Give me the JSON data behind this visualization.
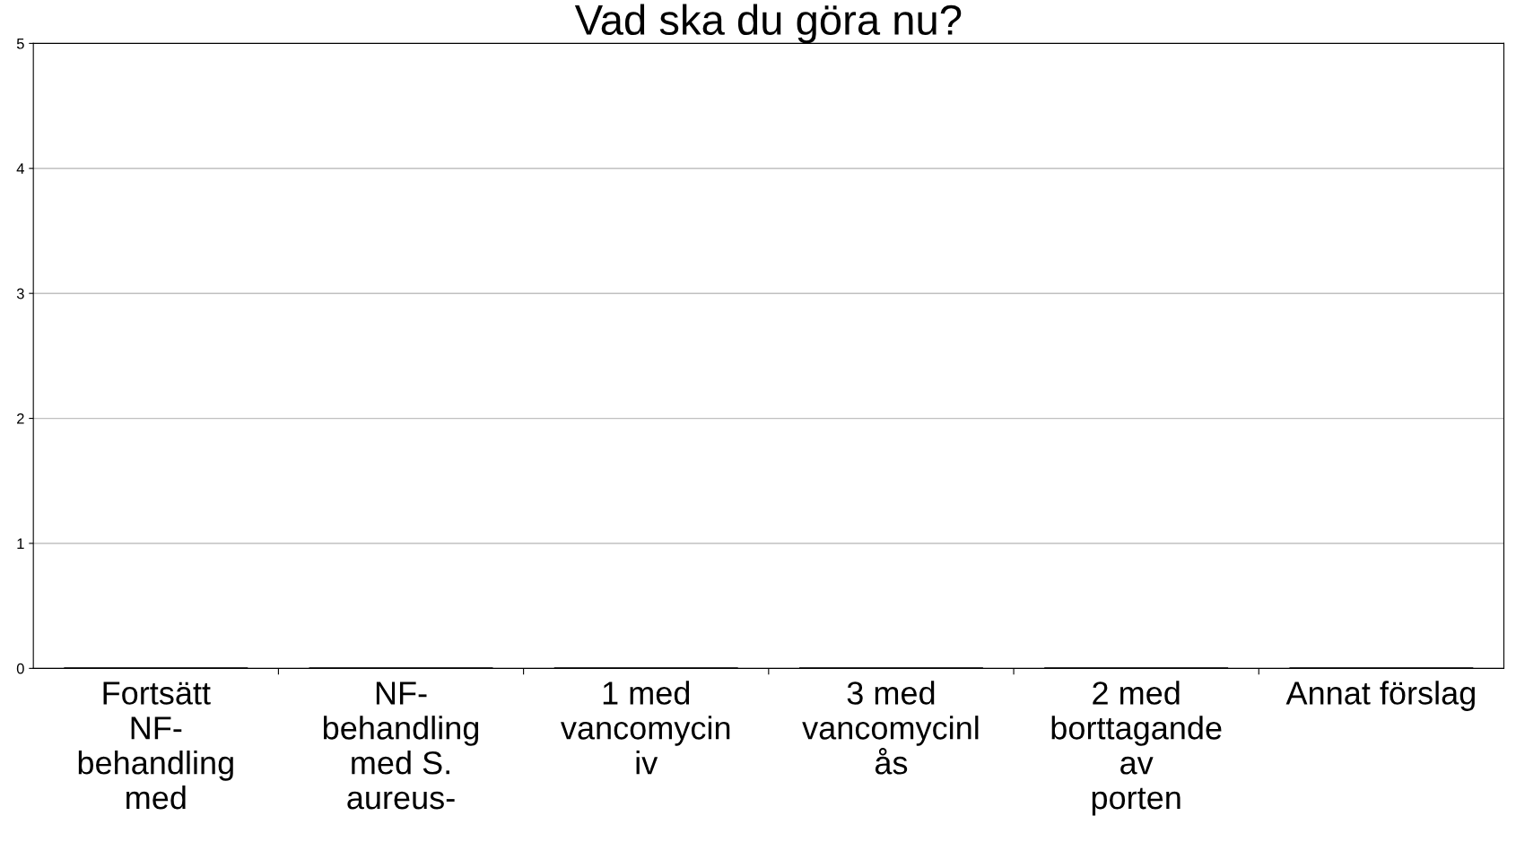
{
  "chart_data": {
    "type": "bar",
    "title": "Vad ska du göra nu?",
    "categories": [
      "Fortsätt\nNF-\nbehandling\nmed",
      "NF-\nbehandling\nmed S.\naureus-",
      "1 med\nvancomycin\niv",
      "3 med\nvancomycinl\nås",
      "2 med\nborttagande\nav\nporten",
      "Annat förslag"
    ],
    "values": [
      0,
      0,
      0,
      0,
      0,
      0
    ],
    "color": "#000000",
    "ylim": [
      0,
      5
    ],
    "yticks": [
      0,
      1,
      2,
      3,
      4,
      5
    ],
    "grid": "y",
    "legend": false
  }
}
